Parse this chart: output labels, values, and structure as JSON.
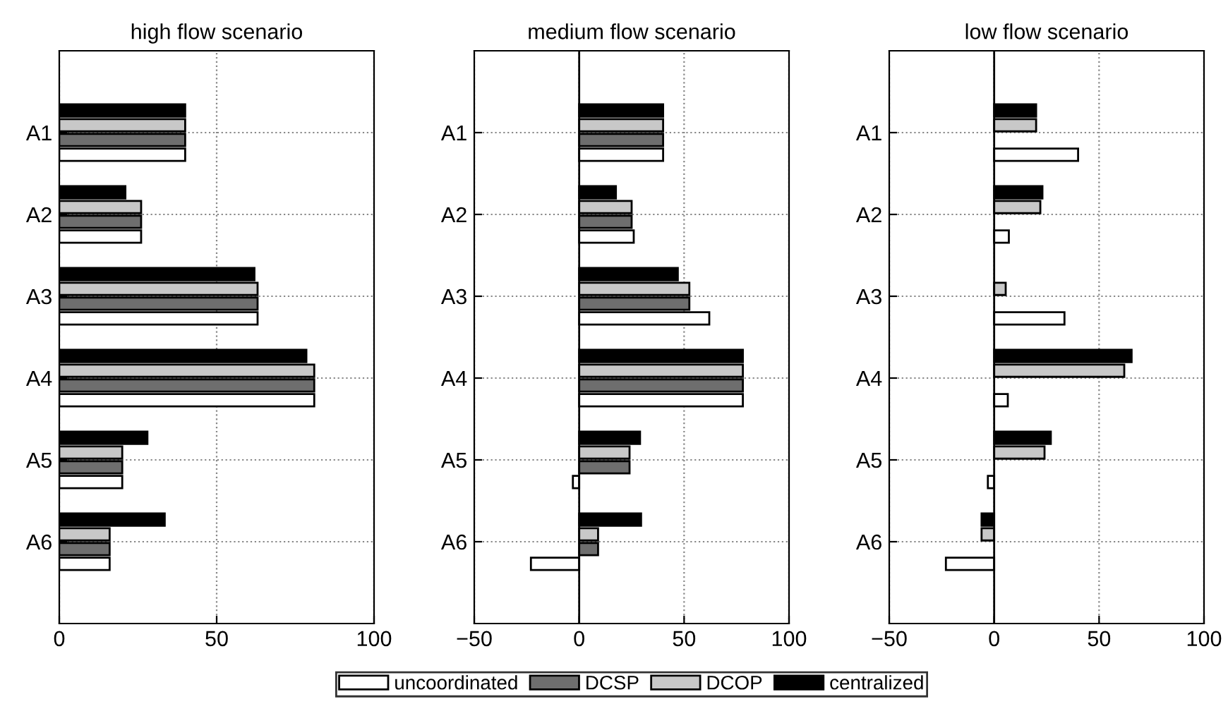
{
  "chart_data": [
    {
      "type": "bar",
      "orientation": "horizontal",
      "title": "high flow scenario",
      "categories": [
        "A1",
        "A2",
        "A3",
        "A4",
        "A5",
        "A6"
      ],
      "xlim": [
        0,
        100
      ],
      "xticks": [
        0,
        50,
        100
      ],
      "grid": true,
      "series": [
        {
          "color": "#000000",
          "values": [
            40,
            21,
            62,
            78.5,
            28,
            33.5
          ]
        },
        {
          "color": "#c8c8c8",
          "values": [
            40,
            26,
            63,
            81,
            20,
            16
          ]
        },
        {
          "color": "#6e6e6e",
          "values": [
            40,
            26,
            63,
            81,
            20,
            16
          ]
        },
        {
          "color": "#ffffff",
          "values": [
            40,
            26,
            63,
            81,
            20,
            16
          ]
        }
      ]
    },
    {
      "type": "bar",
      "orientation": "horizontal",
      "title": "medium flow scenario",
      "categories": [
        "A1",
        "A2",
        "A3",
        "A4",
        "A5",
        "A6"
      ],
      "xlim": [
        -50,
        100
      ],
      "xticks": [
        {
          "value": -50,
          "label": "−50"
        },
        0,
        50,
        100
      ],
      "grid": true,
      "legend": "bottom",
      "ref_lines": [
        {
          "axis": "x",
          "value": 0,
          "color": "#000000"
        }
      ],
      "series": [
        {
          "name": "centralized",
          "color": "#000000",
          "values": [
            40,
            17.5,
            47,
            78,
            29,
            29.5
          ]
        },
        {
          "name": "DCOP",
          "color": "#c8c8c8",
          "values": [
            40,
            25,
            52.5,
            78,
            24,
            9
          ]
        },
        {
          "name": "DCSP",
          "color": "#6e6e6e",
          "values": [
            40,
            25,
            52.5,
            78,
            24,
            9
          ]
        },
        {
          "name": "uncoordinated",
          "color": "#ffffff",
          "values": [
            40,
            26,
            62,
            78,
            -3,
            -23
          ]
        }
      ]
    },
    {
      "type": "bar",
      "orientation": "horizontal",
      "title": "low flow scenario",
      "categories": [
        "A1",
        "A2",
        "A3",
        "A4",
        "A5",
        "A6"
      ],
      "xlim": [
        -50,
        100
      ],
      "xticks": [
        {
          "value": -50,
          "label": "−50"
        },
        0,
        50,
        100
      ],
      "grid": true,
      "ref_lines": [
        {
          "axis": "x",
          "value": 0,
          "color": "#000000"
        }
      ],
      "series": [
        {
          "color": "#000000",
          "values": [
            20,
            23,
            null,
            65.5,
            27,
            -6
          ]
        },
        {
          "color": "#c8c8c8",
          "values": [
            20,
            22,
            5.5,
            62,
            24,
            -6
          ]
        },
        {
          "color": "#6e6e6e",
          "values": [
            null,
            null,
            null,
            null,
            null,
            null
          ]
        },
        {
          "color": "#ffffff",
          "values": [
            40,
            7,
            33.5,
            6.5,
            -3,
            -23
          ]
        }
      ]
    }
  ]
}
